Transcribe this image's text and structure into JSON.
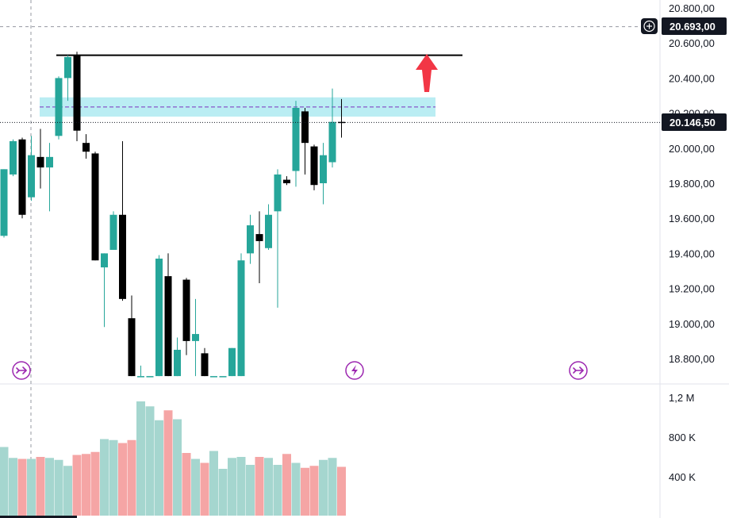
{
  "chart_data": {
    "type": "candlestick",
    "price_axis": {
      "ticks": [
        "20.800,00",
        "20.600,00",
        "20.400,00",
        "20.200,00",
        "20.000,00",
        "19.800,00",
        "19.600,00",
        "19.400,00",
        "19.200,00",
        "19.000,00",
        "18.800,00"
      ],
      "tick_values": [
        20800,
        20600,
        20400,
        20200,
        20000,
        19800,
        19600,
        19400,
        19200,
        19000,
        18800
      ],
      "range": [
        18700,
        20870
      ]
    },
    "crosshair_label": "20.693,00",
    "crosshair_value": 20693,
    "last_price_label": "20.146,50",
    "last_price_value": 20146.5,
    "resistance_line": 20530,
    "zone": {
      "low": 20180,
      "high": 20290,
      "mid": 20235
    },
    "volume_axis": {
      "ticks": [
        "1,2 M",
        "800 K",
        "400 K"
      ],
      "tick_values": [
        1200000,
        800000,
        400000
      ],
      "range": [
        0,
        1280000
      ]
    },
    "candles": [
      {
        "o": 19500,
        "h": 19880,
        "l": 19490,
        "c": 19880,
        "v": 700000
      },
      {
        "o": 19850,
        "h": 20050,
        "l": 19840,
        "c": 20040,
        "v": 590000
      },
      {
        "o": 20050,
        "h": 20060,
        "l": 19600,
        "c": 19620,
        "v": 580000
      },
      {
        "o": 19720,
        "h": 20070,
        "l": 19700,
        "c": 19960,
        "v": 580000
      },
      {
        "o": 19950,
        "h": 20110,
        "l": 19770,
        "c": 19890,
        "v": 600000
      },
      {
        "o": 19890,
        "h": 20030,
        "l": 19640,
        "c": 19950,
        "v": 590000
      },
      {
        "o": 20070,
        "h": 20410,
        "l": 20050,
        "c": 20400,
        "v": 570000
      },
      {
        "o": 20400,
        "h": 20530,
        "l": 20270,
        "c": 20520,
        "v": 510000
      },
      {
        "o": 20530,
        "h": 20550,
        "l": 20040,
        "c": 20100,
        "v": 620000
      },
      {
        "o": 20030,
        "h": 20080,
        "l": 19940,
        "c": 19980,
        "v": 630000
      },
      {
        "o": 19970,
        "h": 19980,
        "l": 19360,
        "c": 19360,
        "v": 650000
      },
      {
        "o": 19320,
        "h": 19400,
        "l": 18980,
        "c": 19400,
        "v": 780000
      },
      {
        "o": 19420,
        "h": 19640,
        "l": 19420,
        "c": 19620,
        "v": 770000
      },
      {
        "o": 19620,
        "h": 20040,
        "l": 19130,
        "c": 19140,
        "v": 740000
      },
      {
        "o": 19030,
        "h": 19160,
        "l": 18700,
        "c": 18700,
        "v": 770000
      },
      {
        "o": 18700,
        "h": 18760,
        "l": 18700,
        "c": 18700,
        "v": 1160000
      },
      {
        "o": 18700,
        "h": 18700,
        "l": 18700,
        "c": 18700,
        "v": 1110000
      },
      {
        "o": 18700,
        "h": 19390,
        "l": 18700,
        "c": 19370,
        "v": 970000
      },
      {
        "o": 19270,
        "h": 19400,
        "l": 18700,
        "c": 18700,
        "v": 1070000
      },
      {
        "o": 18700,
        "h": 18920,
        "l": 18700,
        "c": 18850,
        "v": 980000
      },
      {
        "o": 19250,
        "h": 19260,
        "l": 18820,
        "c": 18900,
        "v": 640000
      },
      {
        "o": 18900,
        "h": 19140,
        "l": 18700,
        "c": 18940,
        "v": 580000
      },
      {
        "o": 18830,
        "h": 18860,
        "l": 18700,
        "c": 18700,
        "v": 540000
      },
      {
        "o": 18700,
        "h": 18700,
        "l": 18700,
        "c": 18700,
        "v": 660000
      },
      {
        "o": 18700,
        "h": 18700,
        "l": 18700,
        "c": 18700,
        "v": 480000
      },
      {
        "o": 18700,
        "h": 18860,
        "l": 18700,
        "c": 18860,
        "v": 590000
      },
      {
        "o": 18700,
        "h": 19400,
        "l": 18700,
        "c": 19360,
        "v": 600000
      },
      {
        "o": 19400,
        "h": 19620,
        "l": 19340,
        "c": 19560,
        "v": 520000
      },
      {
        "o": 19510,
        "h": 19640,
        "l": 19230,
        "c": 19470,
        "v": 600000
      },
      {
        "o": 19430,
        "h": 19680,
        "l": 19420,
        "c": 19620,
        "v": 590000
      },
      {
        "o": 19640,
        "h": 19880,
        "l": 19090,
        "c": 19850,
        "v": 520000
      },
      {
        "o": 19820,
        "h": 19840,
        "l": 19790,
        "c": 19800,
        "v": 630000
      },
      {
        "o": 19870,
        "h": 20270,
        "l": 19780,
        "c": 20230,
        "v": 540000
      },
      {
        "o": 20210,
        "h": 20230,
        "l": 19850,
        "c": 20030,
        "v": 490000
      },
      {
        "o": 20010,
        "h": 20020,
        "l": 19760,
        "c": 19790,
        "v": 510000
      },
      {
        "o": 19800,
        "h": 20030,
        "l": 19680,
        "c": 19960,
        "v": 570000
      },
      {
        "o": 19920,
        "h": 20340,
        "l": 19890,
        "c": 20150,
        "v": 590000
      },
      {
        "o": 20150,
        "h": 20280,
        "l": 20060,
        "c": 20146.5,
        "v": 500000
      }
    ]
  },
  "colors": {
    "up": "#26a69a",
    "down": "#000000",
    "vol_up": "#a5d6cf",
    "vol_down": "#f5a5a5",
    "zone_fill": "#b2ebf2",
    "zone_mid": "#7b2fbe",
    "arrow": "#f23645",
    "event_icon": "#9c27b0"
  },
  "icons": {
    "crosshair_plus": "plus-circle-icon",
    "event_left": "forward-circle-icon",
    "event_mid": "lightning-circle-icon",
    "event_right": "forward-circle-icon"
  }
}
